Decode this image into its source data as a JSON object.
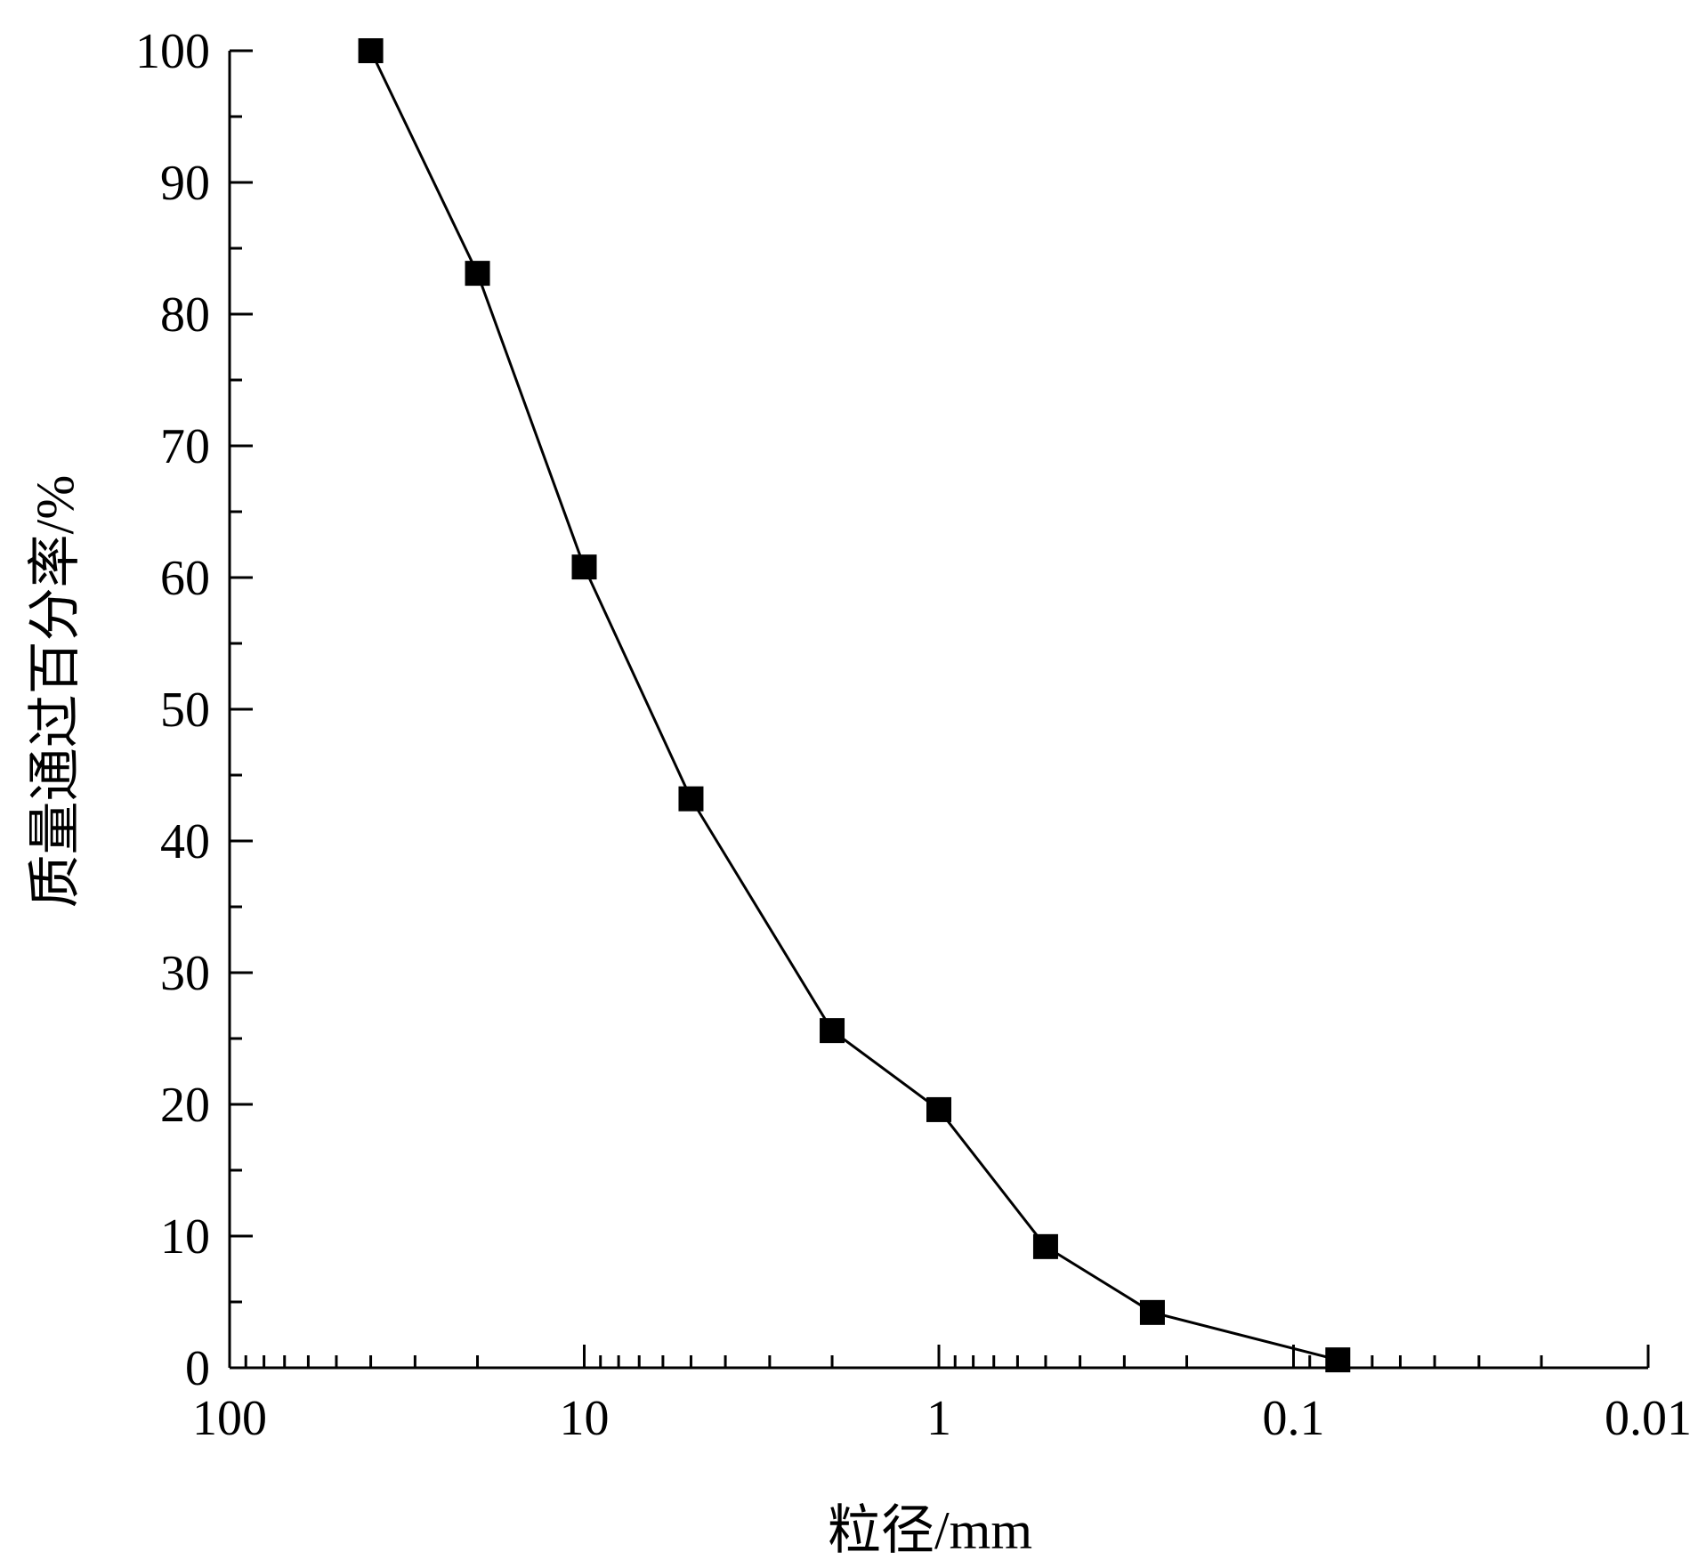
{
  "chart_data": {
    "type": "line",
    "xlabel": "粒径/mm",
    "ylabel": "质量通过百分率/%",
    "x_scale": "log",
    "x_reversed": true,
    "xlim": [
      100,
      0.01
    ],
    "ylim": [
      0,
      100
    ],
    "x_ticks": [
      100,
      10,
      1,
      0.1,
      0.01
    ],
    "x_tick_labels": [
      "100",
      "10",
      "1",
      "0.1",
      "0.01"
    ],
    "y_ticks": [
      0,
      10,
      20,
      30,
      40,
      50,
      60,
      70,
      80,
      90,
      100
    ],
    "y_tick_labels": [
      "0",
      "10",
      "20",
      "30",
      "40",
      "50",
      "60",
      "70",
      "80",
      "90",
      "100"
    ],
    "grid": false,
    "series": [
      {
        "marker": "square",
        "color": "#000000",
        "x": [
          40,
          20,
          10,
          5,
          2,
          1,
          0.5,
          0.25,
          0.075
        ],
        "y": [
          100,
          83.1,
          60.8,
          43.2,
          25.6,
          19.6,
          9.2,
          4.2,
          0.6
        ]
      }
    ]
  }
}
